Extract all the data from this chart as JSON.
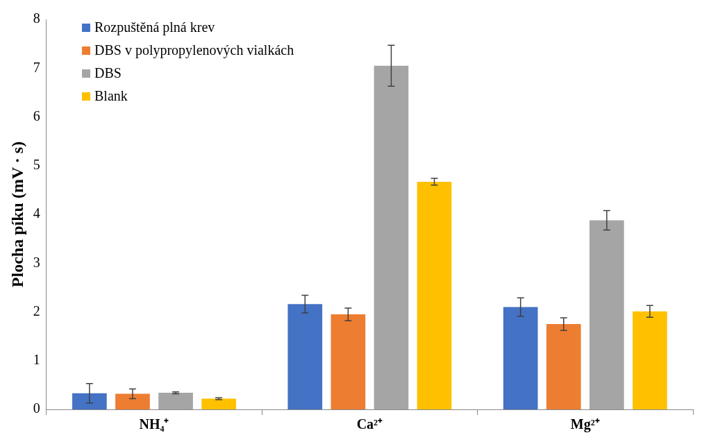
{
  "chart_data": {
    "type": "bar",
    "ylabel": "Plocha píku (mV · s)",
    "categories": [
      "NH₄⁺",
      "Ca²⁺",
      "Mg²⁺"
    ],
    "series": [
      {
        "name": "Rozpuštěná plná krev",
        "color": "#4472c4",
        "values": [
          0.33,
          2.16,
          2.1
        ],
        "errors": [
          0.2,
          0.18,
          0.19
        ]
      },
      {
        "name": "DBS v polypropylenových vialkách",
        "color": "#ed7d31",
        "values": [
          0.32,
          1.95,
          1.75
        ],
        "errors": [
          0.1,
          0.13,
          0.13
        ]
      },
      {
        "name": "DBS",
        "color": "#a5a5a5",
        "values": [
          0.34,
          7.05,
          3.88
        ],
        "errors": [
          0.02,
          0.42,
          0.2
        ]
      },
      {
        "name": "Blank",
        "color": "#ffc000",
        "values": [
          0.22,
          4.67,
          2.01
        ],
        "errors": [
          0.02,
          0.07,
          0.12
        ]
      }
    ],
    "ylim": [
      0,
      8
    ],
    "yticks": [
      0,
      1,
      2,
      3,
      4,
      5,
      6,
      7,
      8
    ],
    "grid": false,
    "legend": "top left"
  }
}
